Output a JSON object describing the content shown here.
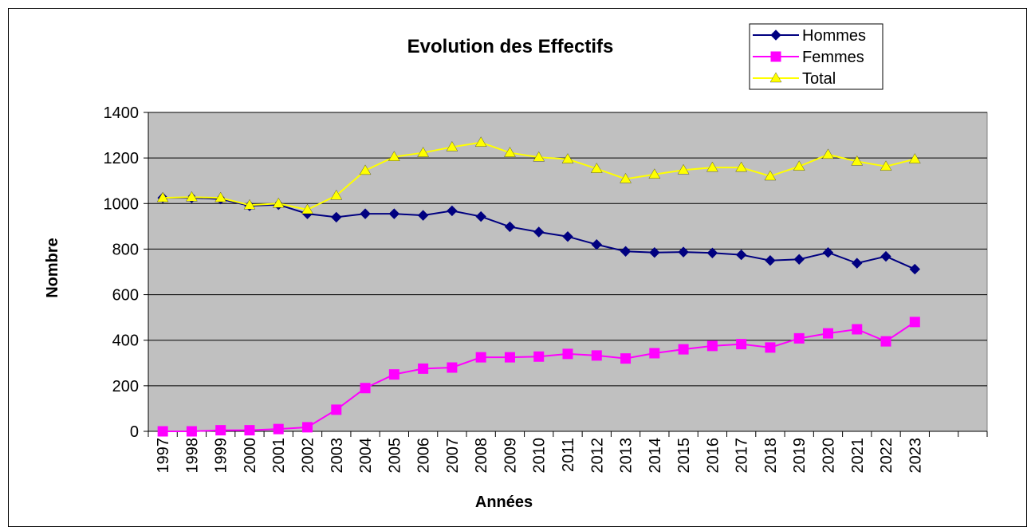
{
  "chart_data": {
    "type": "line",
    "title": "Evolution des Effectifs",
    "xlabel": "Années",
    "ylabel": "Nombre",
    "categories": [
      "1997",
      "1998",
      "1999",
      "2000",
      "2001",
      "2002",
      "2003",
      "2004",
      "2005",
      "2006",
      "2007",
      "2008",
      "2009",
      "2010",
      "2011",
      "2012",
      "2013",
      "2014",
      "2015",
      "2016",
      "2017",
      "2018",
      "2019",
      "2020",
      "2021",
      "2022",
      "2023",
      null,
      null
    ],
    "series": [
      {
        "name": "Hommes",
        "color": "#000080",
        "marker": "diamond",
        "values": [
          1025,
          1025,
          1020,
          990,
          995,
          955,
          940,
          955,
          955,
          948,
          968,
          943,
          898,
          875,
          855,
          820,
          790,
          785,
          787,
          783,
          775,
          750,
          755,
          785,
          738,
          768,
          712,
          null,
          null
        ]
      },
      {
        "name": "Femmes",
        "color": "#ff00ff",
        "marker": "square",
        "values": [
          0,
          0,
          5,
          5,
          10,
          18,
          95,
          190,
          250,
          275,
          280,
          325,
          325,
          328,
          340,
          333,
          320,
          343,
          360,
          375,
          383,
          368,
          408,
          430,
          448,
          395,
          480,
          null,
          null
        ]
      },
      {
        "name": "Total",
        "color": "#ffff00",
        "marker": "triangle",
        "values": [
          1025,
          1028,
          1025,
          993,
          1000,
          973,
          1035,
          1145,
          1205,
          1223,
          1248,
          1268,
          1223,
          1203,
          1195,
          1153,
          1108,
          1128,
          1147,
          1158,
          1158,
          1120,
          1163,
          1215,
          1185,
          1163,
          1195,
          null,
          null
        ]
      }
    ],
    "ylim": [
      0,
      1400
    ],
    "yticks": [
      0,
      200,
      400,
      600,
      800,
      1000,
      1200,
      1400
    ],
    "grid": true,
    "legend": "top-right",
    "plot_background": "#c0c0c0"
  }
}
